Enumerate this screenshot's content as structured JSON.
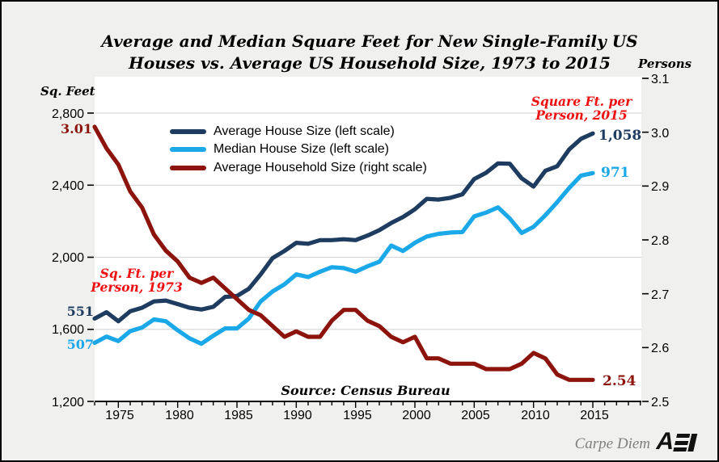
{
  "title_line1": "Average and Median Square Feet for New Single-Family US",
  "title_line2": "Houses vs. Average US Household Size, 1973 to 2015",
  "left_axis_title": "Sq. Feet",
  "right_axis_title": "Persons",
  "left_axis_labels": [
    "2,800",
    "2,400",
    "2,000",
    "1,600",
    "1,200"
  ],
  "right_axis_labels": [
    "3.1",
    "3.0",
    "2.9",
    "2.8",
    "2.7",
    "2.6",
    "2.5"
  ],
  "x_axis_labels": [
    "1975",
    "1980",
    "1985",
    "1990",
    "1995",
    "2000",
    "2005",
    "2010",
    "2015"
  ],
  "annotations": {
    "household_1973": "3.01",
    "avg_per_person_1973": "551",
    "median_per_person_1973": "507",
    "per_person_1973_line1": "Sq. Ft. per",
    "per_person_1973_line2": "Person, 1973",
    "per_person_2015_line1": "Square Ft. per",
    "per_person_2015_line2": "Person, 2015",
    "avg_per_person_2015": "1,058",
    "median_per_person_2015": "971",
    "household_2015": "2.54"
  },
  "source": "Source: Census Bureau",
  "footer": {
    "credit": "Carpe Diem",
    "logo": "AEI"
  },
  "colors": {
    "background": "#F0F0EE",
    "plot_background": "#FFFFFF",
    "gridline": "#D9D9D9",
    "axis": "#000000",
    "accent_red": "#EE1111",
    "credit_gray": "#7F7F7F"
  },
  "chart_data": {
    "type": "line",
    "title": "Average and Median Square Feet for New Single-Family US Houses vs. Average US Household Size, 1973 to 2015",
    "x": [
      1973,
      1974,
      1975,
      1976,
      1977,
      1978,
      1979,
      1980,
      1981,
      1982,
      1983,
      1984,
      1985,
      1986,
      1987,
      1988,
      1989,
      1990,
      1991,
      1992,
      1993,
      1994,
      1995,
      1996,
      1997,
      1998,
      1999,
      2000,
      2001,
      2002,
      2003,
      2004,
      2005,
      2006,
      2007,
      2008,
      2009,
      2010,
      2011,
      2012,
      2013,
      2014,
      2015
    ],
    "series": [
      {
        "name": "Average House Size (left scale)",
        "axis": "left",
        "color": "#1E3B60",
        "values": [
          1660,
          1695,
          1645,
          1700,
          1720,
          1755,
          1760,
          1740,
          1720,
          1710,
          1725,
          1780,
          1785,
          1825,
          1905,
          1995,
          2035,
          2080,
          2075,
          2095,
          2095,
          2100,
          2095,
          2120,
          2150,
          2190,
          2223,
          2266,
          2324,
          2320,
          2330,
          2349,
          2434,
          2469,
          2521,
          2519,
          2438,
          2392,
          2480,
          2505,
          2598,
          2657,
          2687
        ]
      },
      {
        "name": "Median House Size (left scale)",
        "axis": "left",
        "color": "#1AA8E9",
        "values": [
          1525,
          1560,
          1535,
          1590,
          1610,
          1655,
          1645,
          1595,
          1550,
          1520,
          1565,
          1605,
          1605,
          1660,
          1755,
          1810,
          1850,
          1905,
          1890,
          1920,
          1945,
          1940,
          1920,
          1950,
          1975,
          2065,
          2035,
          2080,
          2115,
          2130,
          2137,
          2140,
          2227,
          2248,
          2277,
          2215,
          2135,
          2169,
          2233,
          2306,
          2384,
          2453,
          2467
        ]
      },
      {
        "name": "Average Household Size (right scale)",
        "axis": "right",
        "color": "#8C140C",
        "values": [
          3.01,
          2.97,
          2.94,
          2.89,
          2.86,
          2.81,
          2.78,
          2.76,
          2.73,
          2.72,
          2.73,
          2.71,
          2.69,
          2.67,
          2.66,
          2.64,
          2.62,
          2.63,
          2.62,
          2.62,
          2.65,
          2.67,
          2.67,
          2.65,
          2.64,
          2.62,
          2.61,
          2.62,
          2.58,
          2.58,
          2.57,
          2.57,
          2.57,
          2.56,
          2.56,
          2.56,
          2.57,
          2.59,
          2.58,
          2.55,
          2.54,
          2.54,
          2.54
        ]
      }
    ],
    "left_axis": {
      "label": "Sq. Feet",
      "min": 1200,
      "max": 2993,
      "ticks": [
        1200,
        1600,
        2000,
        2400,
        2800
      ]
    },
    "right_axis": {
      "label": "Persons",
      "min": 2.5,
      "max": 3.1,
      "ticks": [
        2.5,
        2.6,
        2.7,
        2.8,
        2.9,
        3.0,
        3.1
      ]
    },
    "x_range": [
      1973,
      2019
    ],
    "x_ticks_labeled": [
      1975,
      1980,
      1985,
      1990,
      1995,
      2000,
      2005,
      2010,
      2015
    ],
    "gridlines_left_values": [
      1600,
      2000,
      2400,
      2800
    ],
    "grid": "horizontal-only",
    "legend_position": "top-left-inside"
  }
}
